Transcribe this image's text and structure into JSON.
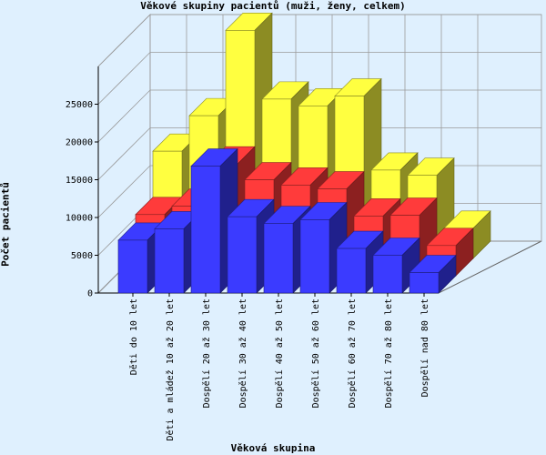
{
  "chart_data": {
    "type": "bar",
    "title": "Věkové skupiny pacientů (muži, ženy, celkem)",
    "xlabel": "Věková skupina",
    "ylabel": "Počet pacientů",
    "ylim": [
      0,
      30000
    ],
    "yticks": [
      "0",
      "5000",
      "10000",
      "15000",
      "20000",
      "25000"
    ],
    "categories": [
      "Děti do 10 let",
      "Děti a mládež 10 až 20 let",
      "Dospělí 20 až 30 let",
      "Dospělí 30 až 40 let",
      "Dospělí 40 až 50 let",
      "Dospělí 50 až 60 let",
      "Dospělí 60 až 70 let",
      "Dospělí 70 až 80 let",
      "Dospělí nad 80 let"
    ],
    "series": [
      {
        "color": "#ffff40",
        "values": [
          14200,
          18900,
          30200,
          21100,
          20200,
          21500,
          11700,
          11000,
          4000
        ]
      },
      {
        "color": "#ff3b3b",
        "values": [
          8100,
          9200,
          14800,
          12700,
          12000,
          11500,
          7900,
          8000,
          4000
        ]
      },
      {
        "color": "#3b3bff",
        "values": [
          7000,
          8500,
          16800,
          10100,
          9200,
          9700,
          5900,
          5000,
          2700
        ]
      }
    ],
    "grid": true,
    "legend": "none"
  }
}
